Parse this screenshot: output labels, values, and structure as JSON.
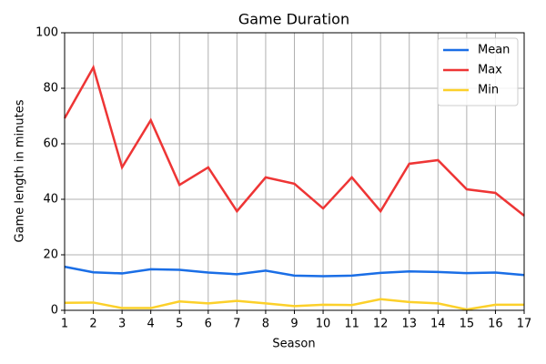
{
  "chart_data": {
    "type": "line",
    "title": "Game Duration",
    "x_label": "Season",
    "y_label": "Game length in minutes",
    "x": [
      1,
      2,
      3,
      4,
      5,
      6,
      7,
      8,
      9,
      10,
      11,
      12,
      13,
      14,
      15,
      16,
      17
    ],
    "series": [
      {
        "name": "Mean",
        "color": "#1a6ee6",
        "values": [
          15.7,
          13.7,
          13.3,
          14.8,
          14.6,
          13.6,
          13.0,
          14.3,
          12.5,
          12.3,
          12.5,
          13.5,
          14.0,
          13.8,
          13.4,
          13.6,
          12.7
        ]
      },
      {
        "name": "Max",
        "color": "#ee3535",
        "values": [
          69.2,
          87.5,
          51.5,
          68.5,
          45.2,
          51.5,
          35.7,
          47.9,
          45.6,
          36.7,
          47.9,
          35.7,
          52.8,
          54.1,
          43.6,
          42.3,
          34.1
        ]
      },
      {
        "name": "Min",
        "color": "#fcd02a",
        "values": [
          2.7,
          2.8,
          0.8,
          0.8,
          3.2,
          2.5,
          3.4,
          2.5,
          1.5,
          2.0,
          1.9,
          4.0,
          3.0,
          2.5,
          0.3,
          2.0,
          2.0
        ]
      }
    ],
    "xlim": [
      1,
      17
    ],
    "xticks": [
      1,
      2,
      3,
      4,
      5,
      6,
      7,
      8,
      9,
      10,
      11,
      12,
      13,
      14,
      15,
      16,
      17
    ],
    "ylim": [
      0,
      100
    ],
    "yticks": [
      0,
      20,
      40,
      60,
      80,
      100
    ],
    "grid": true,
    "legend": "upper right"
  }
}
